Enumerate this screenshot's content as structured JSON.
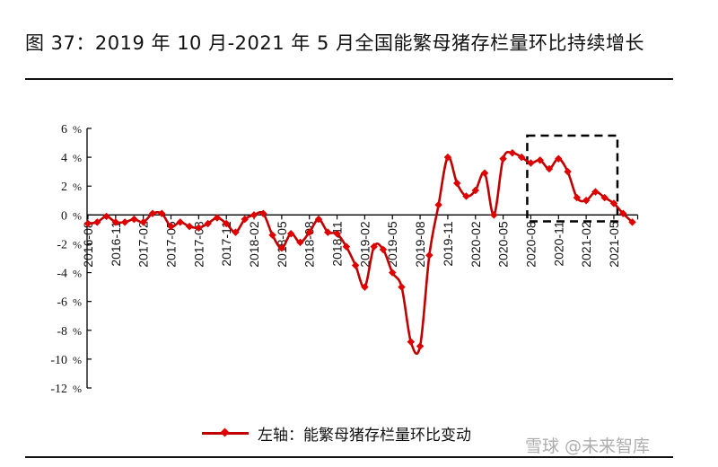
{
  "title": "图 37：2019 年 10 月-2021 年 5 月全国能繁母猪存栏量环比持续增长",
  "watermark": "雪球 @未来智库",
  "colors": {
    "line": "#c00000",
    "marker": "#e00000",
    "axis": "#000000"
  },
  "chart_data": {
    "type": "line",
    "title": "",
    "xlabel": "",
    "ylabel": "",
    "ylim": [
      -12,
      6
    ],
    "yticks": [
      6,
      4,
      2,
      0,
      -2,
      -4,
      -6,
      -8,
      -10,
      -12
    ],
    "ytick_labels": [
      "6 %",
      "4 %",
      "2 %",
      "0 %",
      "-2 %",
      "-4 %",
      "-6 %",
      "-8 %",
      "-10 %",
      "-12 %"
    ],
    "xtick_labels": [
      "2016-08",
      "2016-11",
      "2017-02",
      "2017-05",
      "2017-08",
      "2017-11",
      "2018-02",
      "2018-05",
      "2018-08",
      "2018-11",
      "2019-02",
      "2019-05",
      "2019-08",
      "2019-11",
      "2020-02",
      "2020-05",
      "2020-08",
      "2020-11",
      "2021-02",
      "2021-05"
    ],
    "x": [
      "2016-08",
      "2016-09",
      "2016-10",
      "2016-11",
      "2016-12",
      "2017-01",
      "2017-02",
      "2017-03",
      "2017-04",
      "2017-05",
      "2017-06",
      "2017-07",
      "2017-08",
      "2017-09",
      "2017-10",
      "2017-11",
      "2017-12",
      "2018-01",
      "2018-02",
      "2018-03",
      "2018-04",
      "2018-05",
      "2018-06",
      "2018-07",
      "2018-08",
      "2018-09",
      "2018-10",
      "2018-11",
      "2018-12",
      "2019-01",
      "2019-02",
      "2019-03",
      "2019-04",
      "2019-05",
      "2019-06",
      "2019-07",
      "2019-08",
      "2019-09",
      "2019-10",
      "2019-11",
      "2019-12",
      "2020-01",
      "2020-02",
      "2020-03",
      "2020-04",
      "2020-05",
      "2020-06",
      "2020-07",
      "2020-08",
      "2020-09",
      "2020-10",
      "2020-11",
      "2020-12",
      "2021-01",
      "2021-02",
      "2021-03",
      "2021-04",
      "2021-05",
      "2021-06",
      "2021-07"
    ],
    "series": [
      {
        "name": "左轴：能繁母猪存栏量环比变动",
        "values": [
          -0.6,
          -0.5,
          -0.1,
          -0.5,
          -0.5,
          -0.3,
          -0.5,
          0.1,
          0.1,
          -0.8,
          -0.5,
          -0.8,
          -0.9,
          -0.6,
          -0.2,
          -0.6,
          -1.2,
          -0.3,
          0.0,
          0.1,
          -1.4,
          -2.3,
          -1.3,
          -1.9,
          -1.2,
          -0.3,
          -1.2,
          -1.3,
          -2.2,
          -3.5,
          -5.0,
          -2.2,
          -2.4,
          -4.0,
          -5.0,
          -8.8,
          -9.1,
          -2.8,
          0.7,
          4.0,
          2.2,
          1.3,
          1.7,
          2.9,
          0.0,
          3.9,
          4.3,
          4.0,
          3.6,
          3.8,
          3.2,
          3.9,
          3.0,
          1.2,
          1.0,
          1.6,
          1.2,
          0.8,
          0.1,
          -0.5
        ]
      }
    ],
    "annotations": [
      {
        "type": "dashed-box",
        "from": "2020-08",
        "to": "2021-05"
      }
    ],
    "legend": "bottom",
    "grid": false
  }
}
